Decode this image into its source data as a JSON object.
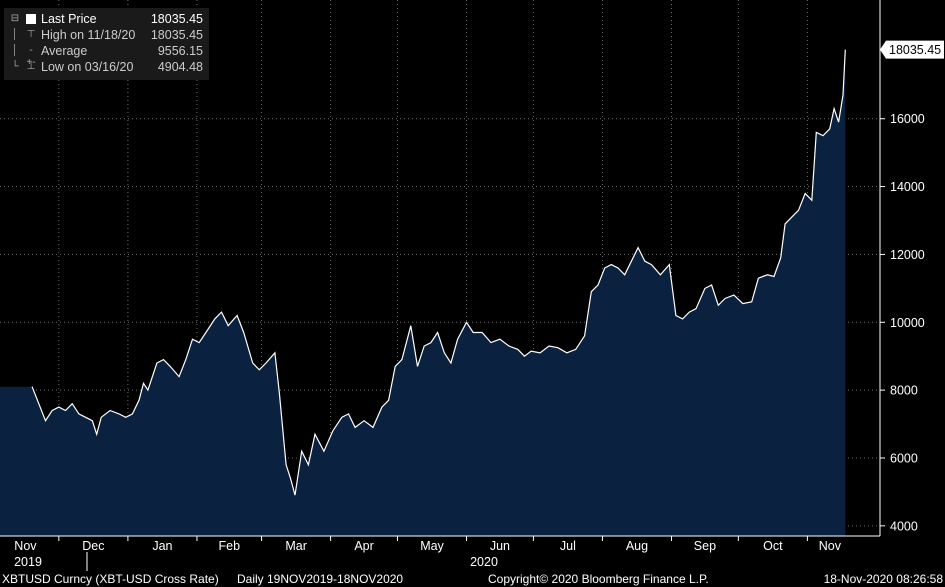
{
  "legend": {
    "last": {
      "label": "Last Price",
      "value": "18035.45"
    },
    "high": {
      "label": "High on 11/18/20",
      "value": "18035.45"
    },
    "average": {
      "label": "Average",
      "value": "9556.15"
    },
    "low": {
      "label": "Low on 03/16/20",
      "value": "4904.48"
    }
  },
  "footer": {
    "ticker": "XBTUSD Curncy (XBT-USD Cross Rate)",
    "range": "Daily 19NOV2019-18NOV2020",
    "copyright": "Copyright© 2020 Bloomberg Finance L.P.",
    "timestamp": "18-Nov-2020 08:26:58"
  },
  "colors": {
    "background": "#000000",
    "area_fill": "#0b2140",
    "line": "#ffffff",
    "grid": "#7a7a7a"
  },
  "chart_data": {
    "type": "area",
    "title": "",
    "xlabel": "",
    "ylabel": "",
    "ylim": [
      3700,
      19500
    ],
    "y_ticks": [
      4000,
      6000,
      8000,
      10000,
      12000,
      14000,
      16000
    ],
    "y_tick_labels": [
      "4000",
      "6000",
      "8000",
      "10000",
      "12000",
      "14000",
      "16000"
    ],
    "last_value_label": "18035.45",
    "x_months": [
      "Nov",
      "Dec",
      "Jan",
      "Feb",
      "Mar",
      "Apr",
      "May",
      "Jun",
      "Jul",
      "Aug",
      "Sep",
      "Oct",
      "Nov"
    ],
    "x_years": [
      "2019",
      "2020"
    ],
    "grid": true,
    "legend_position": "top-left",
    "series": [
      {
        "values": [
          [
            "2019-11-19",
            8100
          ],
          [
            "2019-11-22",
            7600
          ],
          [
            "2019-11-25",
            7100
          ],
          [
            "2019-11-28",
            7400
          ],
          [
            "2019-12-01",
            7500
          ],
          [
            "2019-12-04",
            7400
          ],
          [
            "2019-12-07",
            7600
          ],
          [
            "2019-12-10",
            7300
          ],
          [
            "2019-12-13",
            7200
          ],
          [
            "2019-12-16",
            7100
          ],
          [
            "2019-12-18",
            6700
          ],
          [
            "2019-12-20",
            7200
          ],
          [
            "2019-12-24",
            7400
          ],
          [
            "2019-12-28",
            7300
          ],
          [
            "2019-12-31",
            7200
          ],
          [
            "2020-01-03",
            7300
          ],
          [
            "2020-01-06",
            7700
          ],
          [
            "2020-01-08",
            8200
          ],
          [
            "2020-01-10",
            8000
          ],
          [
            "2020-01-14",
            8800
          ],
          [
            "2020-01-17",
            8900
          ],
          [
            "2020-01-20",
            8700
          ],
          [
            "2020-01-24",
            8400
          ],
          [
            "2020-01-27",
            8900
          ],
          [
            "2020-01-30",
            9500
          ],
          [
            "2020-02-02",
            9400
          ],
          [
            "2020-02-05",
            9700
          ],
          [
            "2020-02-09",
            10100
          ],
          [
            "2020-02-12",
            10300
          ],
          [
            "2020-02-15",
            9900
          ],
          [
            "2020-02-19",
            10200
          ],
          [
            "2020-02-22",
            9700
          ],
          [
            "2020-02-26",
            8800
          ],
          [
            "2020-02-29",
            8600
          ],
          [
            "2020-03-03",
            8800
          ],
          [
            "2020-03-07",
            9100
          ],
          [
            "2020-03-09",
            7900
          ],
          [
            "2020-03-12",
            5800
          ],
          [
            "2020-03-14",
            5400
          ],
          [
            "2020-03-16",
            4904.48
          ],
          [
            "2020-03-19",
            6200
          ],
          [
            "2020-03-22",
            5800
          ],
          [
            "2020-03-25",
            6700
          ],
          [
            "2020-03-29",
            6200
          ],
          [
            "2020-04-02",
            6800
          ],
          [
            "2020-04-06",
            7200
          ],
          [
            "2020-04-09",
            7300
          ],
          [
            "2020-04-12",
            6900
          ],
          [
            "2020-04-16",
            7100
          ],
          [
            "2020-04-20",
            6900
          ],
          [
            "2020-04-24",
            7500
          ],
          [
            "2020-04-27",
            7700
          ],
          [
            "2020-04-30",
            8700
          ],
          [
            "2020-05-03",
            8900
          ],
          [
            "2020-05-07",
            9900
          ],
          [
            "2020-05-10",
            8700
          ],
          [
            "2020-05-13",
            9300
          ],
          [
            "2020-05-16",
            9400
          ],
          [
            "2020-05-19",
            9700
          ],
          [
            "2020-05-22",
            9100
          ],
          [
            "2020-05-25",
            8800
          ],
          [
            "2020-05-28",
            9500
          ],
          [
            "2020-06-01",
            10000
          ],
          [
            "2020-06-04",
            9700
          ],
          [
            "2020-06-08",
            9700
          ],
          [
            "2020-06-12",
            9400
          ],
          [
            "2020-06-16",
            9500
          ],
          [
            "2020-06-20",
            9300
          ],
          [
            "2020-06-24",
            9200
          ],
          [
            "2020-06-27",
            9000
          ],
          [
            "2020-06-30",
            9150
          ],
          [
            "2020-07-04",
            9100
          ],
          [
            "2020-07-08",
            9300
          ],
          [
            "2020-07-12",
            9250
          ],
          [
            "2020-07-16",
            9100
          ],
          [
            "2020-07-20",
            9200
          ],
          [
            "2020-07-24",
            9600
          ],
          [
            "2020-07-27",
            10900
          ],
          [
            "2020-07-30",
            11100
          ],
          [
            "2020-08-02",
            11600
          ],
          [
            "2020-08-05",
            11700
          ],
          [
            "2020-08-08",
            11600
          ],
          [
            "2020-08-11",
            11400
          ],
          [
            "2020-08-14",
            11800
          ],
          [
            "2020-08-17",
            12200
          ],
          [
            "2020-08-20",
            11800
          ],
          [
            "2020-08-23",
            11700
          ],
          [
            "2020-08-27",
            11400
          ],
          [
            "2020-08-31",
            11700
          ],
          [
            "2020-09-03",
            10200
          ],
          [
            "2020-09-06",
            10100
          ],
          [
            "2020-09-09",
            10300
          ],
          [
            "2020-09-12",
            10400
          ],
          [
            "2020-09-16",
            11000
          ],
          [
            "2020-09-19",
            11100
          ],
          [
            "2020-09-22",
            10500
          ],
          [
            "2020-09-25",
            10700
          ],
          [
            "2020-09-29",
            10800
          ],
          [
            "2020-10-03",
            10550
          ],
          [
            "2020-10-07",
            10600
          ],
          [
            "2020-10-10",
            11300
          ],
          [
            "2020-10-14",
            11400
          ],
          [
            "2020-10-17",
            11350
          ],
          [
            "2020-10-20",
            11900
          ],
          [
            "2020-10-22",
            12900
          ],
          [
            "2020-10-25",
            13100
          ],
          [
            "2020-10-28",
            13300
          ],
          [
            "2020-10-31",
            13800
          ],
          [
            "2020-11-03",
            13600
          ],
          [
            "2020-11-05",
            15600
          ],
          [
            "2020-11-08",
            15500
          ],
          [
            "2020-11-11",
            15700
          ],
          [
            "2020-11-13",
            16300
          ],
          [
            "2020-11-15",
            15900
          ],
          [
            "2020-11-17",
            16700
          ],
          [
            "2020-11-18",
            18035.45
          ]
        ]
      }
    ]
  }
}
